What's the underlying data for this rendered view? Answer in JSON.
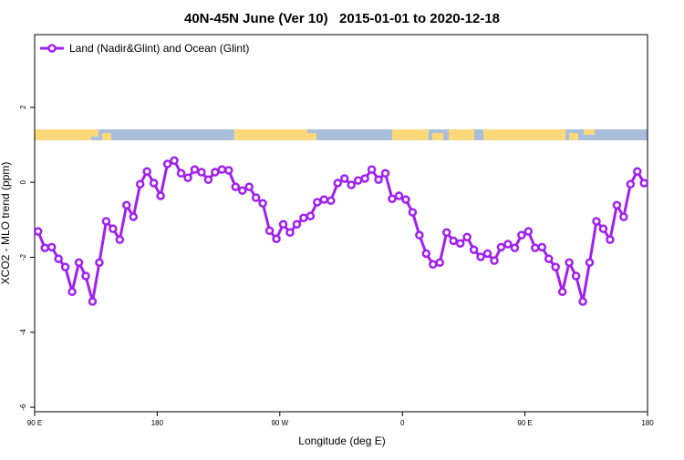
{
  "chart_data": {
    "type": "line",
    "title": "40N-45N June (Ver 10)   2015-01-01 to 2020-12-18",
    "x_label": "Longitude (deg E)",
    "y_label": "XCO2 - MLO trend (ppm)",
    "legend": "top-left",
    "xlim": [
      90,
      540
    ],
    "xticks": [
      {
        "value": 90,
        "label": "90 E"
      },
      {
        "value": 180,
        "label": "180"
      },
      {
        "value": 270,
        "label": "90 W"
      },
      {
        "value": 360,
        "label": "0"
      },
      {
        "value": 450,
        "label": "90 E"
      },
      {
        "value": 540,
        "label": "180"
      }
    ],
    "ylim": [
      -6.12,
      3.94
    ],
    "yticks": [
      -6,
      -4,
      -2,
      0,
      2
    ],
    "x": [
      92.5,
      97.5,
      102.5,
      107.5,
      112.5,
      117.5,
      122.5,
      127.5,
      132.5,
      137.5,
      142.5,
      147.5,
      152.5,
      157.5,
      162.5,
      167.5,
      172.5,
      177.5,
      182.5,
      187.5,
      192.5,
      197.5,
      202.5,
      207.5,
      212.5,
      217.5,
      222.5,
      227.5,
      232.5,
      237.5,
      242.5,
      247.5,
      252.5,
      257.5,
      262.5,
      267.5,
      272.5,
      277.5,
      282.5,
      287.5,
      292.5,
      297.5,
      302.5,
      307.5,
      312.5,
      317.5,
      322.5,
      327.5,
      332.5,
      337.5,
      342.5,
      347.5,
      352.5,
      357.5,
      362.5,
      367.5,
      372.5,
      377.5,
      382.5,
      387.5,
      392.5,
      397.5,
      402.5,
      407.5,
      412.5,
      417.5,
      422.5,
      427.5,
      432.5,
      437.5,
      442.5,
      447.5,
      452.5,
      457.5,
      462.5,
      467.5,
      472.5,
      477.5,
      482.5,
      487.5,
      492.5,
      497.5,
      502.5,
      507.5,
      512.5,
      517.5,
      522.5,
      527.5,
      532.5,
      537.5
    ],
    "series": [
      {
        "name": "Land (Nadir&Glint) and Ocean (Glint)",
        "color": "#a020f0",
        "values": [
          -1.31,
          -1.75,
          -1.73,
          -2.04,
          -2.26,
          -2.92,
          -2.14,
          -2.5,
          -3.18,
          -2.14,
          -1.04,
          -1.24,
          -1.53,
          -0.61,
          -0.92,
          -0.05,
          0.29,
          -0.02,
          -0.36,
          0.49,
          0.58,
          0.24,
          0.12,
          0.34,
          0.27,
          0.07,
          0.27,
          0.34,
          0.32,
          -0.12,
          -0.22,
          -0.12,
          -0.41,
          -0.56,
          -1.29,
          -1.51,
          -1.12,
          -1.34,
          -1.12,
          -0.95,
          -0.9,
          -0.53,
          -0.46,
          -0.49,
          -0.02,
          0.1,
          -0.07,
          0.05,
          0.1,
          0.34,
          0.07,
          0.24,
          -0.44,
          -0.36,
          -0.46,
          -0.8,
          -1.41,
          -1.9,
          -2.19,
          -2.14,
          -1.34,
          -1.56,
          -1.63,
          -1.46,
          -1.8,
          -1.99,
          -1.9,
          -2.09,
          -1.73,
          -1.65,
          -1.75,
          -1.41,
          -1.31,
          -1.75,
          -1.73,
          -2.04,
          -2.26,
          -2.92,
          -2.14,
          -2.5,
          -3.18,
          -2.14,
          -1.04,
          -1.24,
          -1.53,
          -0.61,
          -0.92,
          -0.05,
          0.29,
          -0.02
        ]
      }
    ]
  }
}
